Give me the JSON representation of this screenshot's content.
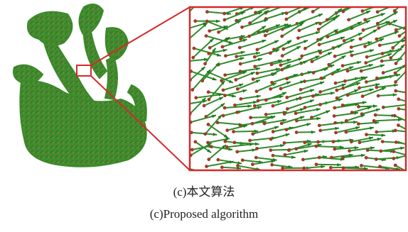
{
  "figure": {
    "caption_cn": "(c)本文算法",
    "caption_en": "(c)Proposed algorithm"
  }
}
